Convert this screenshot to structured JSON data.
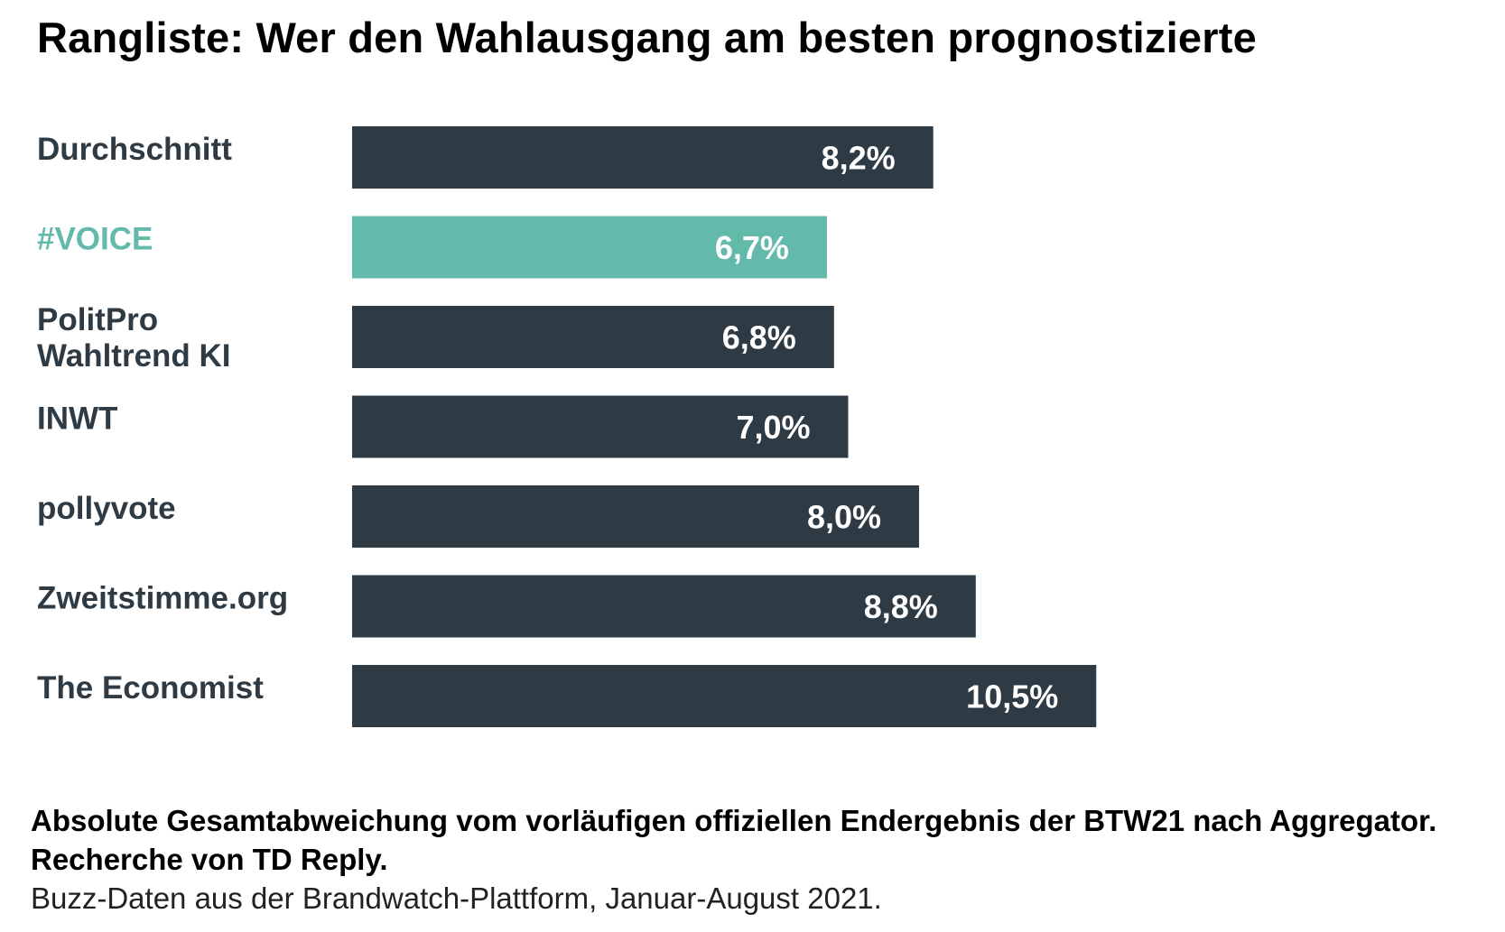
{
  "title": "Rangliste: Wer den Wahlausgang am besten prognostizierte",
  "colors": {
    "bar_default": "#2e3b45",
    "bar_highlight": "#63baab",
    "label_default": "#2e3b45",
    "label_highlight": "#63baab",
    "value_text": "#ffffff"
  },
  "chart_data": {
    "type": "bar",
    "orientation": "horizontal",
    "categories": [
      [
        "Durchschnitt"
      ],
      [
        "#VOICE"
      ],
      [
        "PolitPro",
        "Wahltrend KI"
      ],
      [
        "INWT"
      ],
      [
        "pollyvote"
      ],
      [
        "Zweitstimme.org"
      ],
      [
        "The Economist"
      ]
    ],
    "values": [
      8.2,
      6.7,
      6.8,
      7.0,
      8.0,
      8.8,
      10.5
    ],
    "value_labels": [
      "8,2%",
      "6,7%",
      "6,8%",
      "7,0%",
      "8,0%",
      "8,8%",
      "10,5%"
    ],
    "highlight_index": 1,
    "xlim": [
      0,
      20
    ],
    "grid": false,
    "legend": "none"
  },
  "footnote": {
    "line1": "Absolute Gesamtabweichung vom vorläufigen offiziellen Endergebnis der BTW21 nach Aggregator.",
    "line2": "Recherche von TD Reply.",
    "line3": "Buzz-Daten aus der Brandwatch-Plattform, Januar-August 2021."
  }
}
